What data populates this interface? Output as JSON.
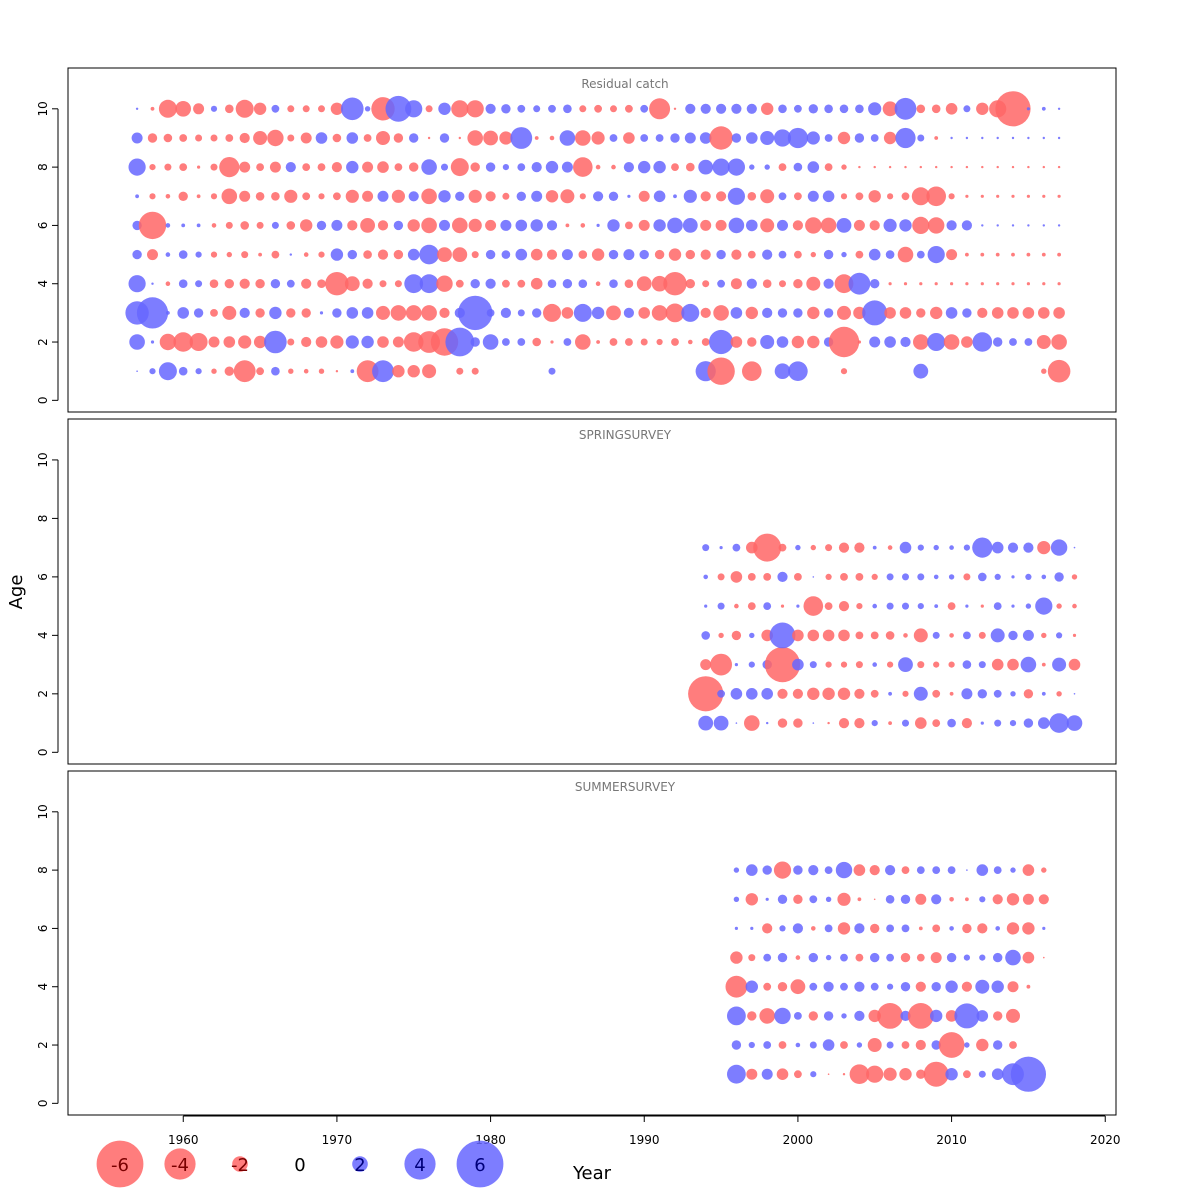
{
  "chart_data": {
    "type": "scatter",
    "subtype": "bubble residual plot",
    "xlabel": "Year",
    "ylabel": "Age",
    "x_ticks": [
      "1960",
      "1970",
      "1980",
      "1990",
      "2000",
      "2010",
      "2020"
    ],
    "y_ticks": [
      "0",
      "2",
      "4",
      "6",
      "8",
      "10"
    ],
    "xlim": [
      1952.5,
      2020.7
    ],
    "ylim": [
      -0.4,
      11.4
    ],
    "colors": {
      "positive": "#6666ff",
      "negative": "#ff6666",
      "opacity": 0.85
    },
    "legend": {
      "position": "bottom-left",
      "values": [
        -6,
        -4,
        -2,
        0,
        2,
        4,
        6
      ],
      "labels": [
        "-6",
        "-4",
        "-2",
        "0",
        "2",
        "4",
        "6"
      ]
    },
    "panels": [
      {
        "title": "Residual catch",
        "years": [
          1957,
          2017
        ],
        "ages": [
          1,
          10
        ],
        "residuals": {
          "10": [
            0.3,
            -0.5,
            -2.3,
            -2.0,
            -1.4,
            0.8,
            -1.1,
            -2.3,
            -1.6,
            1.0,
            -0.9,
            -0.9,
            -0.9,
            -1.6,
            2.9,
            0.7,
            -3.0,
            3.3,
            2.2,
            -0.9,
            1.6,
            -2.2,
            -2.2,
            1.3,
            1.2,
            1.0,
            0.9,
            1.0,
            1.1,
            -0.9,
            -1.0,
            -0.9,
            -1.0,
            1.0,
            -2.7,
            -0.3,
            1.3,
            1.3,
            1.3,
            1.3,
            1.3,
            -1.6,
            1.1,
            1.0,
            1.2,
            1.1,
            1.1,
            1.1,
            1.7,
            -1.9,
            2.8,
            -1.1,
            -1.1,
            -1.5,
            0.9,
            -1.6,
            -2.2,
            -4.5,
            0.4,
            0.5,
            0.3
          ],
          "9": [
            1.4,
            -1.2,
            -1.1,
            -1.0,
            -0.9,
            -0.9,
            -1.0,
            -1.3,
            -1.8,
            -2.1,
            -0.9,
            -1.4,
            1.5,
            -1.1,
            1.5,
            -1.0,
            -1.8,
            -1.2,
            1.2,
            -0.3,
            1.2,
            -0.3,
            -2.0,
            -1.9,
            -1.7,
            2.8,
            -0.5,
            -0.6,
            2.0,
            -2.0,
            -1.7,
            1.0,
            -1.5,
            1.0,
            1.0,
            1.2,
            1.4,
            1.5,
            -3.0,
            1.2,
            1.5,
            1.8,
            2.2,
            2.6,
            1.7,
            1.0,
            -1.6,
            1.2,
            1.0,
            -1.6,
            2.6,
            0.9,
            -0.5,
            0.3,
            0.3,
            0.3,
            0.3,
            0.3,
            0.3,
            0.3,
            0.3
          ],
          "8": [
            2.2,
            -0.8,
            -0.9,
            -1.0,
            -0.4,
            -0.9,
            -2.6,
            -1.4,
            -1.0,
            -1.4,
            1.3,
            -1.0,
            -1.0,
            -1.3,
            1.6,
            -1.4,
            -1.5,
            -1.0,
            -1.2,
            2.0,
            0.9,
            -2.3,
            -1.2,
            1.2,
            0.8,
            1.0,
            1.3,
            1.6,
            1.4,
            -2.5,
            -0.6,
            -0.6,
            1.3,
            1.6,
            1.6,
            -1.0,
            -1.1,
            1.9,
            2.2,
            2.2,
            0.7,
            0.7,
            -1.0,
            1.1,
            1.5,
            -1.0,
            -0.7,
            -0.3,
            -0.3,
            -0.3,
            -0.3,
            -0.3,
            -0.3,
            -0.3,
            -0.3,
            -0.3,
            -0.3,
            -0.3,
            -0.3,
            -0.3,
            -0.3
          ],
          "7": [
            0.5,
            -0.8,
            -0.6,
            -1.2,
            -0.5,
            -0.8,
            -2.0,
            -1.4,
            -1.1,
            -1.1,
            -1.7,
            -1.0,
            -0.8,
            -1.0,
            -1.7,
            -1.4,
            1.4,
            -1.7,
            1.3,
            -2.0,
            1.6,
            1.2,
            -1.7,
            -1.3,
            -0.9,
            1.2,
            1.4,
            -1.6,
            -1.8,
            -0.8,
            1.3,
            1.2,
            0.4,
            -1.4,
            1.5,
            0.5,
            1.7,
            -1.3,
            -1.3,
            2.2,
            -1.1,
            -1.8,
            1.0,
            -1.0,
            1.4,
            1.5,
            -0.8,
            -1.0,
            -1.6,
            -0.8,
            -1.0,
            -2.3,
            -2.5,
            -0.8,
            -0.4,
            -0.4,
            -0.4,
            -0.4,
            -0.4,
            -0.4,
            -0.4
          ],
          "6": [
            1.2,
            -3.5,
            0.6,
            0.5,
            0.5,
            -0.6,
            -0.9,
            -1.1,
            -0.9,
            0.9,
            -1.1,
            -1.6,
            1.2,
            1.4,
            -1.3,
            -1.9,
            -1.3,
            1.2,
            -1.6,
            -2.0,
            1.4,
            -2.0,
            -1.7,
            -1.4,
            1.4,
            1.5,
            1.6,
            1.3,
            -0.5,
            -0.6,
            0.4,
            1.6,
            -1.0,
            -1.4,
            1.6,
            2.0,
            1.9,
            -1.4,
            -1.4,
            2.0,
            1.5,
            -1.8,
            1.4,
            -1.3,
            -2.1,
            -2.0,
            1.9,
            -1.4,
            -1.3,
            1.7,
            1.6,
            -2.2,
            -2.1,
            1.3,
            1.3,
            0.3,
            0.3,
            0.3,
            0.3,
            0.3,
            0.3
          ],
          "5": [
            1.2,
            -1.4,
            0.6,
            1.1,
            0.8,
            -0.8,
            -0.7,
            -0.9,
            -0.5,
            -1.0,
            0.3,
            -0.6,
            -0.8,
            1.6,
            1.2,
            -1.1,
            -1.3,
            -1.2,
            1.5,
            2.5,
            -1.9,
            -1.9,
            -0.9,
            1.2,
            1.1,
            1.5,
            -1.5,
            -1.3,
            1.4,
            -1.1,
            -1.6,
            1.2,
            1.4,
            1.2,
            -1.2,
            -1.6,
            -1.2,
            -1.3,
            1.2,
            -1.3,
            -1.0,
            1.3,
            1.0,
            -1.0,
            -0.7,
            1.2,
            0.7,
            -1.0,
            1.5,
            1.1,
            -2.0,
            1.0,
            2.2,
            -1.4,
            -0.5,
            -0.5,
            -0.5,
            -0.5,
            -0.5,
            -0.5,
            -0.5
          ],
          "4": [
            2.2,
            0.3,
            -0.6,
            1.1,
            0.9,
            -1.1,
            -1.2,
            -1.3,
            -1.2,
            1.2,
            1.0,
            -1.3,
            -1.1,
            -3.0,
            -1.9,
            -1.3,
            -0.9,
            -0.9,
            2.4,
            2.4,
            -2.1,
            -1.0,
            1.2,
            1.3,
            -1.0,
            -1.0,
            -1.5,
            1.1,
            1.2,
            1.1,
            -0.6,
            1.1,
            -1.1,
            -1.9,
            -2.0,
            -3.0,
            -1.2,
            -0.9,
            1.0,
            -1.4,
            1.3,
            -1.1,
            -0.9,
            -1.2,
            -1.8,
            1.3,
            -2.4,
            2.8,
            1.2,
            -0.4,
            -0.4,
            -0.4,
            -0.4,
            -0.4,
            -0.4,
            -0.4,
            -0.4,
            -0.4,
            -0.4,
            -0.4,
            -0.4
          ],
          "3": [
            3.0,
            4.0,
            0.5,
            1.5,
            1.2,
            -1.0,
            -1.8,
            1.3,
            -1.2,
            1.6,
            -1.2,
            -1.2,
            0.4,
            1.2,
            1.5,
            1.5,
            -1.8,
            -2.0,
            -2.0,
            -2.0,
            -1.3,
            1.3,
            4.4,
            1.0,
            1.3,
            0.9,
            1.2,
            -2.3,
            -1.5,
            2.3,
            1.6,
            -1.9,
            1.3,
            -1.5,
            -2.0,
            -2.4,
            2.3,
            -1.3,
            -2.0,
            1.5,
            -1.6,
            1.3,
            1.2,
            1.2,
            -1.6,
            1.2,
            -1.8,
            -1.6,
            3.2,
            -1.5,
            -1.5,
            -1.2,
            -1.6,
            1.5,
            1.2,
            -1.3,
            -1.5,
            -1.5,
            -1.5,
            -1.5,
            -1.5
          ],
          "2": [
            2.0,
            0.4,
            -2.1,
            -2.5,
            -2.3,
            -1.4,
            -1.5,
            -1.7,
            -1.6,
            2.9,
            -0.9,
            -1.3,
            -1.5,
            -1.7,
            1.7,
            1.6,
            -1.5,
            -1.4,
            -2.5,
            -2.8,
            -3.5,
            3.7,
            1.2,
            2.0,
            1.0,
            1.0,
            -1.1,
            -0.4,
            1.0,
            -2.0,
            -0.5,
            -1.0,
            -1.0,
            -0.9,
            -0.8,
            -1.0,
            -0.6,
            -1.0,
            3.1,
            -1.5,
            -1.2,
            1.8,
            1.5,
            -1.6,
            -1.6,
            1.2,
            -3.9,
            -0.4,
            1.4,
            1.5,
            1.3,
            -2.0,
            2.3,
            -2.0,
            -1.5,
            2.5,
            1.2,
            1.0,
            1.0,
            -1.8,
            -2.0
          ],
          "1": [
            0.2,
            0.8,
            2.3,
            1.1,
            0.8,
            -0.7,
            -1.2,
            -2.8,
            -1.0,
            1.1,
            -0.7,
            -0.6,
            -0.7,
            -0.3,
            0.5,
            -2.8,
            2.8,
            -1.6,
            -1.6,
            -1.8,
            0.0,
            -0.9,
            -0.9,
            0.0,
            0.0,
            0.0,
            0.0,
            0.9,
            0.0,
            0.0,
            0.0,
            0.0,
            0.0,
            0.0,
            0.0,
            0.0,
            0.0,
            2.6,
            -3.5,
            0.0,
            -2.5,
            0.0,
            2.0,
            2.5,
            0.0,
            0.0,
            -0.8,
            0.0,
            0.0,
            0.0,
            0.0,
            1.9,
            0.0,
            0.0,
            0.0,
            0.0,
            0.0,
            0.0,
            0.0,
            -0.7,
            -2.9
          ]
        }
      },
      {
        "title": "SPRINGSURVEY",
        "years": [
          1994,
          2018
        ],
        "ages": [
          1,
          7
        ],
        "residuals": {
          "7": [
            0.9,
            0.4,
            1.0,
            -1.5,
            -3.6,
            -1.0,
            0.7,
            -0.7,
            -0.9,
            -1.3,
            -1.3,
            0.5,
            -0.6,
            1.5,
            0.8,
            0.7,
            0.6,
            0.8,
            2.6,
            1.5,
            1.3,
            1.3,
            -1.7,
            2.1,
            0.2
          ],
          "6": [
            0.6,
            -0.9,
            -1.5,
            -1.0,
            -1.0,
            1.3,
            -1.0,
            0.2,
            -0.8,
            -1.0,
            -1.0,
            -0.8,
            0.9,
            0.9,
            0.9,
            0.6,
            0.7,
            -0.9,
            1.1,
            0.8,
            0.4,
            0.8,
            0.6,
            1.2,
            -0.7
          ],
          "5": [
            0.4,
            0.9,
            -0.6,
            -1.0,
            1.0,
            -0.4,
            0.4,
            -2.5,
            -1.0,
            -1.3,
            -0.8,
            0.6,
            0.9,
            0.9,
            0.8,
            0.5,
            -1.0,
            0.4,
            -0.4,
            1.0,
            0.4,
            0.7,
            2.2,
            -0.7,
            -0.6
          ],
          "4": [
            1.1,
            -0.7,
            -1.2,
            0.7,
            -1.5,
            3.3,
            -1.5,
            -1.5,
            -1.5,
            -1.5,
            -1.0,
            -1.0,
            -1.1,
            -0.6,
            -1.8,
            0.9,
            -0.6,
            1.0,
            -0.9,
            1.8,
            1.2,
            1.4,
            -0.7,
            0.8,
            -0.4
          ],
          "3": [
            -1.4,
            -2.8,
            0.4,
            0.8,
            1.2,
            -4.5,
            1.5,
            0.9,
            -0.8,
            -0.8,
            -0.9,
            0.6,
            -0.8,
            1.9,
            -0.9,
            -0.8,
            -0.8,
            1.1,
            0.9,
            -1.5,
            -1.5,
            2.0,
            -0.5,
            1.8,
            -1.5
          ],
          "2": [
            -4.5,
            1.0,
            1.5,
            1.5,
            1.5,
            -1.3,
            -1.3,
            -1.6,
            -1.6,
            -1.6,
            -1.3,
            -1.0,
            0.5,
            -0.8,
            1.8,
            -1.0,
            -0.5,
            1.4,
            1.2,
            1.0,
            0.7,
            -1.2,
            0.5,
            -0.7,
            0.2
          ],
          "1": [
            1.9,
            1.9,
            0.1,
            -2.0,
            0.3,
            -1.2,
            -1.2,
            0.1,
            -0.3,
            -1.3,
            -1.3,
            0.8,
            -0.5,
            0.9,
            -1.5,
            -1.0,
            1.1,
            -1.3,
            0.4,
            0.9,
            0.8,
            1.2,
            1.5,
            2.5,
            2.0
          ]
        }
      },
      {
        "title": "SUMMERSURVEY",
        "years": [
          1996,
          2017
        ],
        "ages": [
          1,
          8
        ],
        "residuals": {
          "8": [
            0.7,
            1.5,
            1.2,
            -2.2,
            1.2,
            1.3,
            1.0,
            2.1,
            -1.5,
            -1.3,
            1.3,
            -1.0,
            1.0,
            1.0,
            1.0,
            0.2,
            1.5,
            1.0,
            0.7,
            -1.5,
            -0.7,
            0.0
          ],
          "7": [
            0.7,
            -1.6,
            0.4,
            1.2,
            -1.2,
            1.0,
            0.7,
            -1.7,
            -0.5,
            -0.2,
            1.1,
            1.2,
            -1.4,
            1.3,
            -0.6,
            -0.5,
            0.8,
            -1.3,
            -1.6,
            -1.4,
            -1.3,
            0.0
          ],
          "6": [
            0.4,
            0.4,
            -1.3,
            0.8,
            1.3,
            -0.6,
            1.0,
            -1.6,
            1.3,
            -1.2,
            1.0,
            1.0,
            -0.5,
            -1.0,
            0.6,
            -1.2,
            -1.3,
            0.6,
            -1.6,
            -1.6,
            0.4,
            0.0
          ],
          "5": [
            -1.6,
            -0.9,
            1.0,
            1.2,
            -0.6,
            1.2,
            0.7,
            1.0,
            -1.0,
            1.2,
            1.0,
            -1.2,
            -1.0,
            -1.4,
            1.2,
            0.8,
            0.8,
            1.2,
            2.0,
            -1.5,
            -0.2,
            0.0
          ],
          "4": [
            -2.8,
            1.6,
            -1.0,
            -1.2,
            -1.9,
            1.0,
            1.3,
            1.0,
            1.3,
            1.0,
            0.8,
            1.2,
            -1.3,
            1.2,
            1.6,
            -1.3,
            1.8,
            1.6,
            -1.4,
            -0.5,
            0.0,
            0.0
          ],
          "3": [
            2.4,
            -1.2,
            -2.0,
            2.1,
            1.0,
            -1.2,
            1.2,
            0.7,
            1.3,
            -1.6,
            -3.3,
            1.3,
            -3.3,
            1.6,
            -1.5,
            3.2,
            1.5,
            -1.2,
            -1.8,
            0.0,
            0.0,
            0.0
          ],
          "2": [
            1.2,
            0.8,
            1.0,
            -1.0,
            0.6,
            0.9,
            1.5,
            -1.0,
            0.7,
            -1.8,
            0.9,
            -1.0,
            -1.3,
            1.2,
            -3.3,
            0.7,
            -1.6,
            1.2,
            -1.0,
            0.0,
            0.0,
            0.0
          ],
          "1": [
            2.4,
            -1.4,
            1.4,
            -1.5,
            -1.0,
            0.8,
            -0.2,
            -0.3,
            -2.5,
            -2.2,
            -1.7,
            -1.6,
            -1.2,
            -3.2,
            1.6,
            -1.0,
            0.9,
            1.5,
            2.8,
            4.5,
            0.0,
            0.0
          ]
        }
      }
    ]
  }
}
